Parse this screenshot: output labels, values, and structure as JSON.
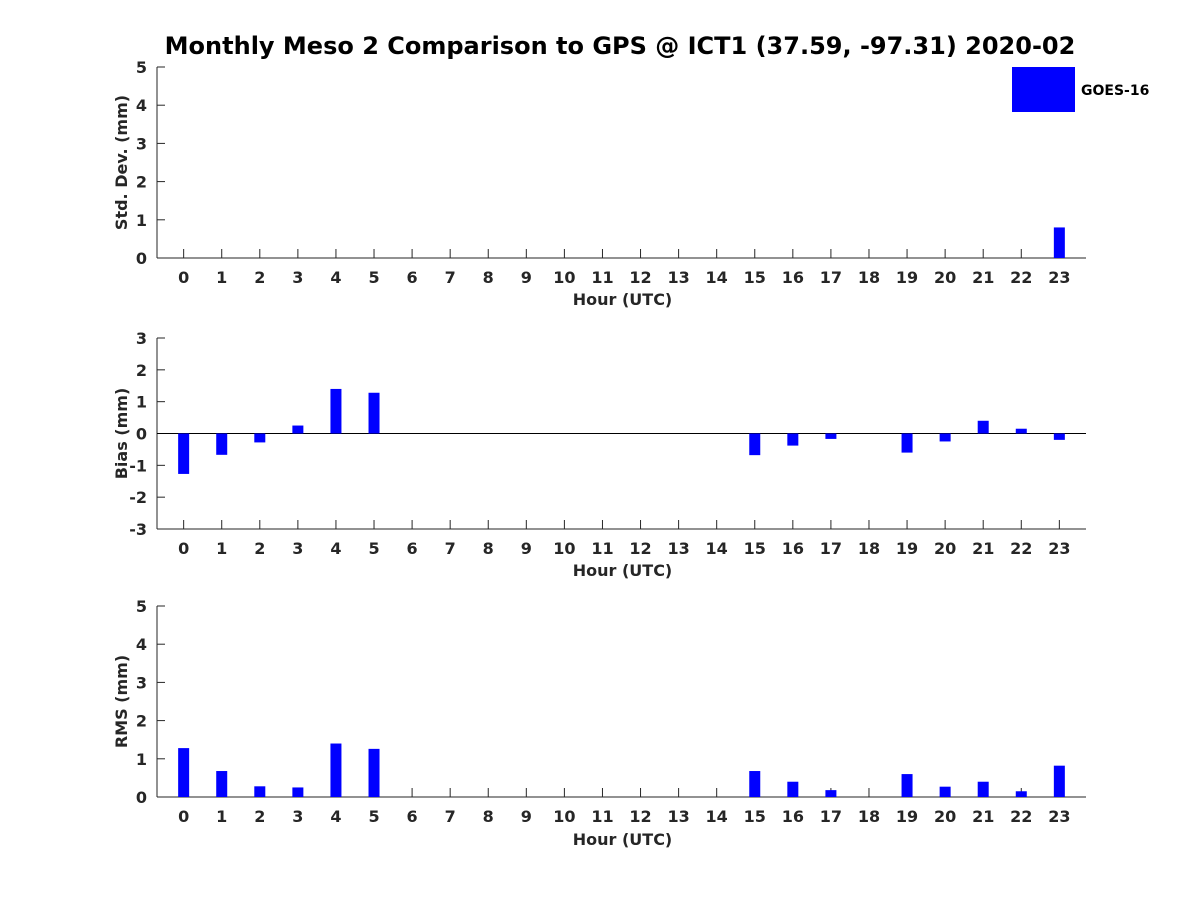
{
  "figure_title": "Monthly Meso 2 Comparison to GPS @ ICT1 (37.59, -97.31) 2020-02",
  "legend": {
    "label": "GOES-16",
    "color": "#0000ff"
  },
  "chart_data": [
    {
      "type": "bar",
      "xlabel": "Hour (UTC)",
      "ylabel": "Std. Dev. (mm)",
      "ylim": [
        0,
        5
      ],
      "yticks": [
        0,
        1,
        2,
        3,
        4,
        5
      ],
      "categories": [
        "0",
        "1",
        "2",
        "3",
        "4",
        "5",
        "6",
        "7",
        "8",
        "9",
        "10",
        "11",
        "12",
        "13",
        "14",
        "15",
        "16",
        "17",
        "18",
        "19",
        "20",
        "21",
        "22",
        "23"
      ],
      "series": [
        {
          "name": "GOES-16",
          "color": "#0000ff",
          "values": [
            0,
            0,
            0,
            0,
            0,
            0,
            0,
            0,
            0,
            0,
            0,
            0,
            0,
            0,
            0,
            0,
            0,
            0,
            0,
            0,
            0,
            0,
            0,
            0.8
          ]
        }
      ],
      "zero_line": false,
      "legend": "top-right"
    },
    {
      "type": "bar",
      "xlabel": "Hour (UTC)",
      "ylabel": "Bias (mm)",
      "ylim": [
        -3,
        3
      ],
      "yticks": [
        -3,
        -2,
        -1,
        0,
        1,
        2,
        3
      ],
      "categories": [
        "0",
        "1",
        "2",
        "3",
        "4",
        "5",
        "6",
        "7",
        "8",
        "9",
        "10",
        "11",
        "12",
        "13",
        "14",
        "15",
        "16",
        "17",
        "18",
        "19",
        "20",
        "21",
        "22",
        "23"
      ],
      "series": [
        {
          "name": "GOES-16",
          "color": "#0000ff",
          "values": [
            -1.27,
            -0.67,
            -0.28,
            0.25,
            1.4,
            1.28,
            null,
            null,
            null,
            null,
            null,
            null,
            null,
            null,
            null,
            -0.68,
            -0.38,
            -0.17,
            null,
            -0.6,
            -0.25,
            0.4,
            0.15,
            -0.2
          ]
        }
      ],
      "zero_line": true
    },
    {
      "type": "bar",
      "xlabel": "Hour (UTC)",
      "ylabel": "RMS (mm)",
      "ylim": [
        0,
        5
      ],
      "yticks": [
        0,
        1,
        2,
        3,
        4,
        5
      ],
      "categories": [
        "0",
        "1",
        "2",
        "3",
        "4",
        "5",
        "6",
        "7",
        "8",
        "9",
        "10",
        "11",
        "12",
        "13",
        "14",
        "15",
        "16",
        "17",
        "18",
        "19",
        "20",
        "21",
        "22",
        "23"
      ],
      "series": [
        {
          "name": "GOES-16",
          "color": "#0000ff",
          "values": [
            1.28,
            0.68,
            0.28,
            0.25,
            1.4,
            1.26,
            null,
            null,
            null,
            null,
            null,
            null,
            null,
            null,
            null,
            0.68,
            0.4,
            0.18,
            null,
            0.6,
            0.27,
            0.4,
            0.15,
            0.82
          ]
        }
      ],
      "zero_line": false
    }
  ]
}
